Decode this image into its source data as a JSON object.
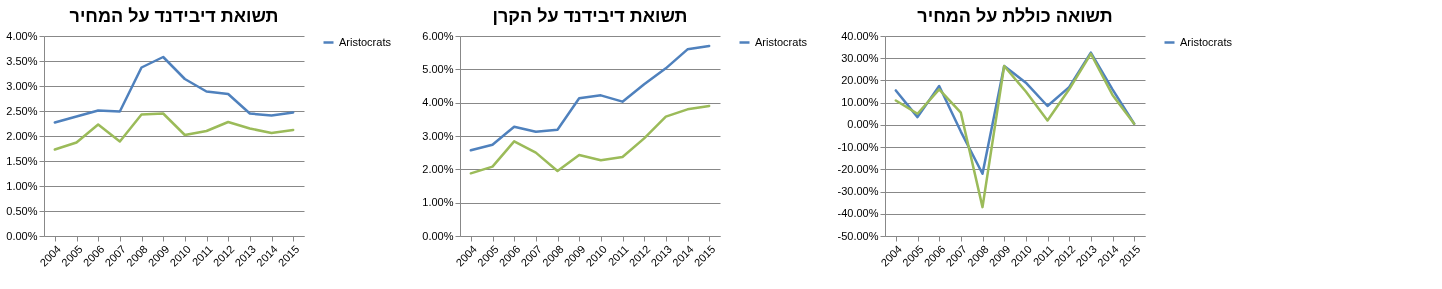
{
  "chart_data": [
    {
      "type": "line",
      "title": "תשואת דיבידנד על המחיר",
      "categories": [
        "2004",
        "2005",
        "2006",
        "2007",
        "2008",
        "2009",
        "2010",
        "2011",
        "2012",
        "2013",
        "2014",
        "2015"
      ],
      "series": [
        {
          "name": "Aristocrats",
          "color": "#4f81bd",
          "values": [
            2.27,
            2.39,
            2.51,
            2.49,
            3.37,
            3.58,
            3.14,
            2.89,
            2.84,
            2.45,
            2.41,
            2.47
          ]
        },
        {
          "color": "#9bbb59",
          "values": [
            1.73,
            1.87,
            2.23,
            1.89,
            2.43,
            2.45,
            2.02,
            2.1,
            2.28,
            2.15,
            2.06,
            2.12
          ]
        }
      ],
      "ylim": [
        0,
        4
      ],
      "yticks": [
        {
          "value": 0,
          "label": "0.00%"
        },
        {
          "value": 0.5,
          "label": "0.50%"
        },
        {
          "value": 1,
          "label": "1.00%"
        },
        {
          "value": 1.5,
          "label": "1.50%"
        },
        {
          "value": 2,
          "label": "2.00%"
        },
        {
          "value": 2.5,
          "label": "2.50%"
        },
        {
          "value": 3,
          "label": "3.00%"
        },
        {
          "value": 3.5,
          "label": "3.50%"
        },
        {
          "value": 4,
          "label": "4.00%"
        }
      ],
      "grid": "y",
      "legend": "right"
    },
    {
      "type": "line",
      "title": "תשואת דיבידנד על הקרן",
      "categories": [
        "2004",
        "2005",
        "2006",
        "2007",
        "2008",
        "2009",
        "2010",
        "2011",
        "2012",
        "2013",
        "2014",
        "2015"
      ],
      "series": [
        {
          "name": "Aristocrats",
          "color": "#4f81bd",
          "values": [
            2.57,
            2.74,
            3.28,
            3.13,
            3.19,
            4.13,
            4.22,
            4.03,
            4.55,
            5.03,
            5.6,
            5.7
          ]
        },
        {
          "color": "#9bbb59",
          "values": [
            1.88,
            2.08,
            2.84,
            2.5,
            1.95,
            2.43,
            2.27,
            2.37,
            2.93,
            3.58,
            3.8,
            3.9
          ]
        }
      ],
      "ylim": [
        0,
        6
      ],
      "yticks": [
        {
          "value": 0,
          "label": "0.00%"
        },
        {
          "value": 1,
          "label": "1.00%"
        },
        {
          "value": 2,
          "label": "2.00%"
        },
        {
          "value": 3,
          "label": "3.00%"
        },
        {
          "value": 4,
          "label": "4.00%"
        },
        {
          "value": 5,
          "label": "5.00%"
        },
        {
          "value": 6,
          "label": "6.00%"
        }
      ],
      "grid": "y",
      "legend": "right"
    },
    {
      "type": "line",
      "title": "תשואה כוללת על המחיר",
      "categories": [
        "2004",
        "2005",
        "2006",
        "2007",
        "2008",
        "2009",
        "2010",
        "2011",
        "2012",
        "2013",
        "2014",
        "2015"
      ],
      "series": [
        {
          "name": "Aristocrats",
          "color": "#4f81bd",
          "values": [
            15.5,
            3.5,
            17.5,
            -3,
            -22,
            26.5,
            19,
            8.5,
            17,
            32.5,
            16,
            0.5
          ]
        },
        {
          "color": "#9bbb59",
          "values": [
            11,
            5,
            16,
            5.5,
            -37,
            26.5,
            15,
            2,
            16,
            32,
            13.5,
            0.5
          ]
        }
      ],
      "ylim": [
        -50,
        40
      ],
      "yticks": [
        {
          "value": -50,
          "label": "-50.00%"
        },
        {
          "value": -40,
          "label": "-40.00%"
        },
        {
          "value": -30,
          "label": "-30.00%"
        },
        {
          "value": -20,
          "label": "-20.00%"
        },
        {
          "value": -10,
          "label": "-10.00%"
        },
        {
          "value": 0,
          "label": "0.00%"
        },
        {
          "value": 10,
          "label": "10.00%"
        },
        {
          "value": 20,
          "label": "20.00%"
        },
        {
          "value": 30,
          "label": "30.00%"
        },
        {
          "value": 40,
          "label": "40.00%"
        }
      ],
      "grid": "y",
      "legend": "right"
    }
  ]
}
